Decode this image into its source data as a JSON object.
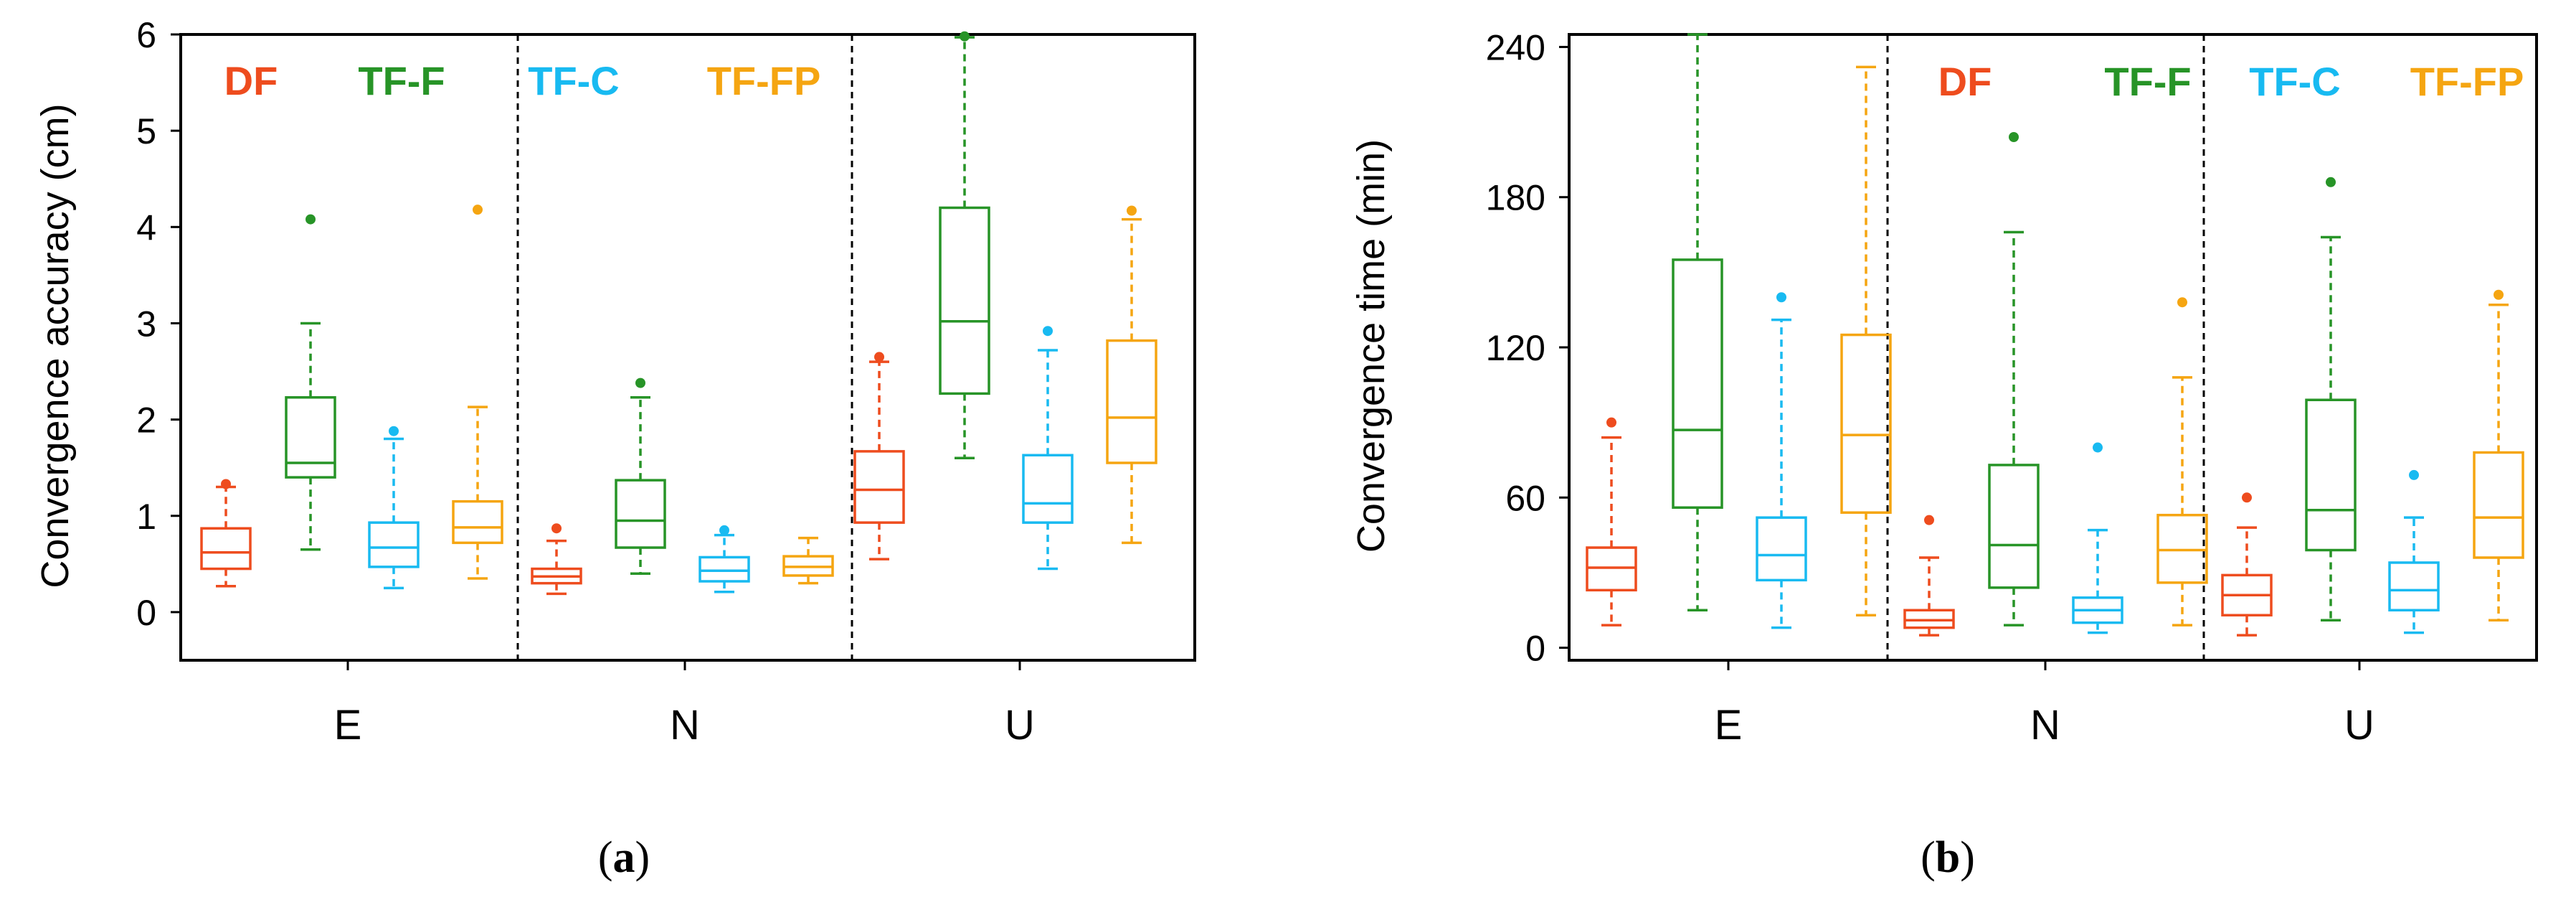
{
  "series_colors": {
    "DF": "#ee4c1e",
    "TF-F": "#279427",
    "TF-C": "#18baf1",
    "TF-FP": "#f5a511"
  },
  "chart_data": [
    {
      "type": "box",
      "panel_label": "a",
      "ylabel": "Convergence accuracy (cm)",
      "ylim": [
        -0.5,
        6
      ],
      "yticks": [
        0,
        1,
        2,
        3,
        4,
        5,
        6
      ],
      "categories": [
        "E",
        "N",
        "U"
      ],
      "legend": [
        "DF",
        "TF-F",
        "TF-C",
        "TF-FP"
      ],
      "legend_position": "top, one label set per category group",
      "series": [
        {
          "name": "DF",
          "boxes": [
            {
              "category": "E",
              "whisker_low": 0.27,
              "q1": 0.45,
              "median": 0.62,
              "q3": 0.87,
              "whisker_high": 1.3,
              "outliers": [
                1.33
              ]
            },
            {
              "category": "N",
              "whisker_low": 0.19,
              "q1": 0.3,
              "median": 0.37,
              "q3": 0.45,
              "whisker_high": 0.74,
              "outliers": [
                0.87
              ]
            },
            {
              "category": "U",
              "whisker_low": 0.55,
              "q1": 0.93,
              "median": 1.27,
              "q3": 1.67,
              "whisker_high": 2.6,
              "outliers": [
                2.65
              ]
            }
          ]
        },
        {
          "name": "TF-F",
          "boxes": [
            {
              "category": "E",
              "whisker_low": 0.65,
              "q1": 1.4,
              "median": 1.55,
              "q3": 2.23,
              "whisker_high": 3.0,
              "outliers": [
                4.08
              ]
            },
            {
              "category": "N",
              "whisker_low": 0.4,
              "q1": 0.67,
              "median": 0.95,
              "q3": 1.37,
              "whisker_high": 2.23,
              "outliers": [
                2.38
              ]
            },
            {
              "category": "U",
              "whisker_low": 1.6,
              "q1": 2.27,
              "median": 3.02,
              "q3": 4.2,
              "whisker_high": 5.97,
              "outliers": [
                5.98
              ]
            }
          ]
        },
        {
          "name": "TF-C",
          "boxes": [
            {
              "category": "E",
              "whisker_low": 0.25,
              "q1": 0.47,
              "median": 0.67,
              "q3": 0.93,
              "whisker_high": 1.8,
              "outliers": [
                1.88
              ]
            },
            {
              "category": "N",
              "whisker_low": 0.21,
              "q1": 0.32,
              "median": 0.43,
              "q3": 0.57,
              "whisker_high": 0.8,
              "outliers": [
                0.85
              ]
            },
            {
              "category": "U",
              "whisker_low": 0.45,
              "q1": 0.93,
              "median": 1.13,
              "q3": 1.63,
              "whisker_high": 2.72,
              "outliers": [
                2.92
              ]
            }
          ]
        },
        {
          "name": "TF-FP",
          "boxes": [
            {
              "category": "E",
              "whisker_low": 0.35,
              "q1": 0.72,
              "median": 0.88,
              "q3": 1.15,
              "whisker_high": 2.13,
              "outliers": [
                4.18
              ]
            },
            {
              "category": "N",
              "whisker_low": 0.3,
              "q1": 0.38,
              "median": 0.47,
              "q3": 0.58,
              "whisker_high": 0.77,
              "outliers": []
            },
            {
              "category": "U",
              "whisker_low": 0.72,
              "q1": 1.55,
              "median": 2.02,
              "q3": 2.82,
              "whisker_high": 4.08,
              "outliers": [
                4.17
              ]
            }
          ]
        }
      ]
    },
    {
      "type": "box",
      "panel_label": "b",
      "ylabel": "Convergence time (min)",
      "ylim": [
        -5,
        245
      ],
      "yticks": [
        0,
        60,
        120,
        180,
        240
      ],
      "categories": [
        "E",
        "N",
        "U"
      ],
      "legend": [
        "DF",
        "TF-F",
        "TF-C",
        "TF-FP"
      ],
      "legend_position": "top, spanning N and U groups",
      "series": [
        {
          "name": "DF",
          "boxes": [
            {
              "category": "E",
              "whisker_low": 9,
              "q1": 23,
              "median": 32,
              "q3": 40,
              "whisker_high": 84,
              "outliers": [
                90
              ]
            },
            {
              "category": "N",
              "whisker_low": 5,
              "q1": 8,
              "median": 11,
              "q3": 15,
              "whisker_high": 36,
              "outliers": [
                51
              ]
            },
            {
              "category": "U",
              "whisker_low": 5,
              "q1": 13,
              "median": 21,
              "q3": 29,
              "whisker_high": 48,
              "outliers": [
                60
              ]
            }
          ]
        },
        {
          "name": "TF-F",
          "boxes": [
            {
              "category": "E",
              "whisker_low": 15,
              "q1": 56,
              "median": 87,
              "q3": 155,
              "whisker_high": 245,
              "outliers": []
            },
            {
              "category": "N",
              "whisker_low": 9,
              "q1": 24,
              "median": 41,
              "q3": 73,
              "whisker_high": 166,
              "outliers": [
                204
              ]
            },
            {
              "category": "U",
              "whisker_low": 11,
              "q1": 39,
              "median": 55,
              "q3": 99,
              "whisker_high": 164,
              "outliers": [
                186
              ]
            }
          ]
        },
        {
          "name": "TF-C",
          "boxes": [
            {
              "category": "E",
              "whisker_low": 8,
              "q1": 27,
              "median": 37,
              "q3": 52,
              "whisker_high": 131,
              "outliers": [
                140
              ]
            },
            {
              "category": "N",
              "whisker_low": 6,
              "q1": 10,
              "median": 15,
              "q3": 20,
              "whisker_high": 47,
              "outliers": [
                80
              ]
            },
            {
              "category": "U",
              "whisker_low": 6,
              "q1": 15,
              "median": 23,
              "q3": 34,
              "whisker_high": 52,
              "outliers": [
                69
              ]
            }
          ]
        },
        {
          "name": "TF-FP",
          "boxes": [
            {
              "category": "E",
              "whisker_low": 13,
              "q1": 54,
              "median": 85,
              "q3": 125,
              "whisker_high": 232,
              "outliers": []
            },
            {
              "category": "N",
              "whisker_low": 9,
              "q1": 26,
              "median": 39,
              "q3": 53,
              "whisker_high": 108,
              "outliers": [
                138
              ]
            },
            {
              "category": "U",
              "whisker_low": 11,
              "q1": 36,
              "median": 52,
              "q3": 78,
              "whisker_high": 137,
              "outliers": [
                141
              ]
            }
          ]
        }
      ]
    }
  ]
}
